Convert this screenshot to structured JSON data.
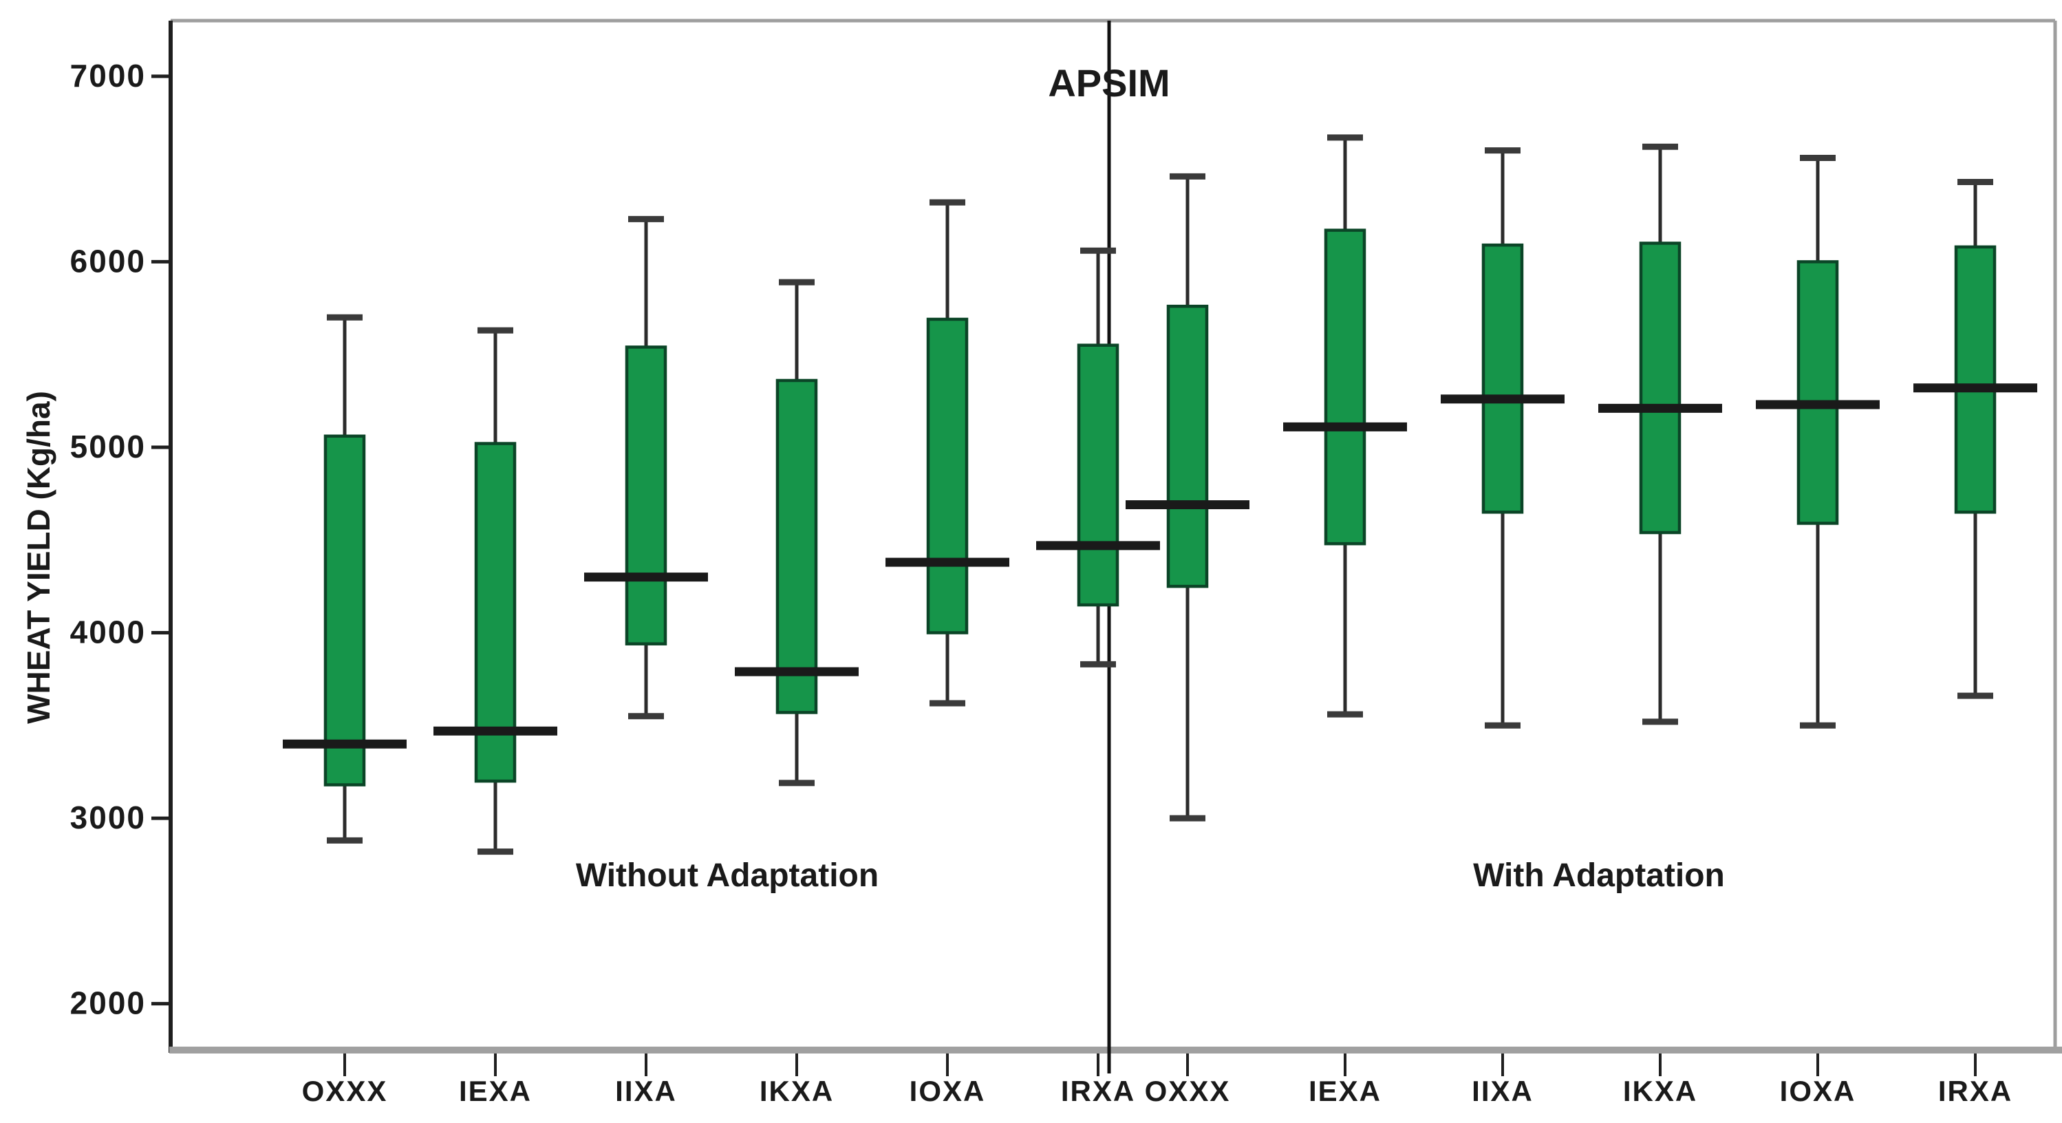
{
  "chart_data": {
    "type": "boxplot",
    "title": "APSIM",
    "ylabel": "WHEAT YIELD (Kg/ha)",
    "xlabel": "",
    "ylim": [
      1750,
      7300
    ],
    "yticks": [
      7000,
      6000,
      5000,
      4000,
      3000,
      2000
    ],
    "ytick_labels": [
      "7000",
      "6000",
      "5000",
      "4000",
      "3000",
      "2000"
    ],
    "grid": "off",
    "legend": "none",
    "orientation": "vertical",
    "divider_between_groups": true,
    "groups": [
      {
        "label": "Without Adaptation",
        "boxes": [
          {
            "category": "OXXX",
            "low": 2880,
            "q1": 3180,
            "median": 3400,
            "q3": 5060,
            "high": 5700
          },
          {
            "category": "IEXA",
            "low": 2820,
            "q1": 3200,
            "median": 3470,
            "q3": 5020,
            "high": 5630
          },
          {
            "category": "IIXA",
            "low": 3550,
            "q1": 3940,
            "median": 4300,
            "q3": 5540,
            "high": 6230
          },
          {
            "category": "IKXA",
            "low": 3190,
            "q1": 3570,
            "median": 3790,
            "q3": 5360,
            "high": 5890
          },
          {
            "category": "IOXA",
            "low": 3620,
            "q1": 4000,
            "median": 4380,
            "q3": 5690,
            "high": 6320
          },
          {
            "category": "IRXA",
            "low": 3830,
            "q1": 4150,
            "median": 4470,
            "q3": 5550,
            "high": 6060
          }
        ]
      },
      {
        "label": "With Adaptation",
        "boxes": [
          {
            "category": "OXXX",
            "low": 3000,
            "q1": 4250,
            "median": 4690,
            "q3": 5760,
            "high": 6460
          },
          {
            "category": "IEXA",
            "low": 3560,
            "q1": 4480,
            "median": 5110,
            "q3": 6170,
            "high": 6670
          },
          {
            "category": "IIXA",
            "low": 3500,
            "q1": 4650,
            "median": 5260,
            "q3": 6090,
            "high": 6600
          },
          {
            "category": "IKXA",
            "low": 3520,
            "q1": 4540,
            "median": 5210,
            "q3": 6100,
            "high": 6620
          },
          {
            "category": "IOXA",
            "low": 3500,
            "q1": 4590,
            "median": 5230,
            "q3": 6000,
            "high": 6560
          },
          {
            "category": "IRXA",
            "low": 3660,
            "q1": 4650,
            "median": 5320,
            "q3": 6080,
            "high": 6430
          }
        ]
      }
    ],
    "colors": {
      "box_fill": "#16954A",
      "box_stroke": "#0B4527",
      "whisker": "#2b2b2b",
      "cap": "#3a3a3a",
      "median": "#1a1a1a",
      "frame": "#9e9e9e",
      "left_axis": "#1f1f1f",
      "bottom_axis": "#a0a0a0",
      "divider": "#111111",
      "text": "#1a1a1a",
      "background": "#ffffff"
    }
  }
}
